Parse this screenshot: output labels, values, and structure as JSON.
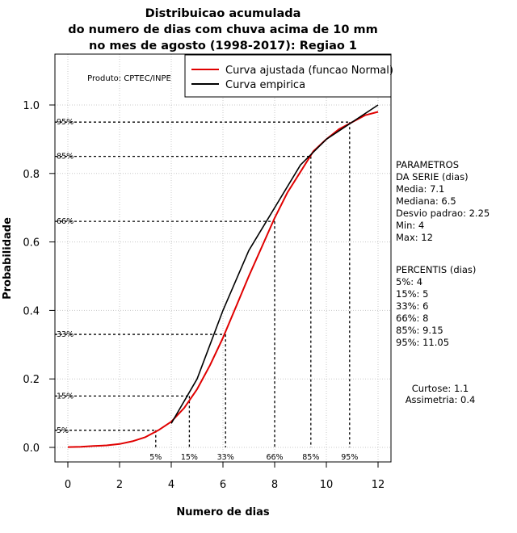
{
  "chart_data": {
    "type": "line",
    "title": [
      "Distribuicao acumulada",
      "do numero de dias com chuva acima de 10 mm",
      "no mes de agosto (1998-2017): Regiao 1"
    ],
    "xlabel": "Numero de dias",
    "ylabel": "Probabilidade",
    "xlim": [
      -0.5,
      12.5
    ],
    "ylim": [
      -0.05,
      1.15
    ],
    "xticks": [
      0,
      2,
      4,
      6,
      8,
      10,
      12
    ],
    "yticks": [
      0.0,
      0.2,
      0.4,
      0.6,
      0.8,
      1.0
    ],
    "xtick_labels": [
      "0",
      "2",
      "4",
      "6",
      "8",
      "10",
      "12"
    ],
    "ytick_labels": [
      "0.0",
      "0.2",
      "0.4",
      "0.6",
      "0.8",
      "1.0"
    ],
    "grid": true,
    "legend_position": "top-right",
    "series": [
      {
        "name": "Curva ajustada (funcao Normal)",
        "color": "#e00000",
        "x": [
          0,
          0.5,
          1,
          1.5,
          2,
          2.5,
          3,
          3.5,
          4,
          4.5,
          5,
          5.5,
          6,
          6.5,
          7,
          7.5,
          8,
          8.5,
          9,
          9.5,
          10,
          10.5,
          11,
          11.5,
          12
        ],
        "y": [
          0.001,
          0.002,
          0.004,
          0.006,
          0.01,
          0.018,
          0.03,
          0.05,
          0.075,
          0.115,
          0.17,
          0.24,
          0.32,
          0.41,
          0.5,
          0.585,
          0.67,
          0.745,
          0.805,
          0.865,
          0.9,
          0.93,
          0.95,
          0.97,
          0.98
        ]
      },
      {
        "name": "Curva empirica",
        "color": "#000000",
        "x": [
          4,
          5,
          6,
          7,
          8,
          9,
          10,
          11,
          12
        ],
        "y": [
          0.07,
          0.2,
          0.4,
          0.575,
          0.7,
          0.825,
          0.9,
          0.95,
          1.0
        ]
      }
    ],
    "percentile_guides": [
      {
        "label": "5%",
        "x": 3.4,
        "y": 0.05
      },
      {
        "label": "15%",
        "x": 4.7,
        "y": 0.15
      },
      {
        "label": "33%",
        "x": 6.1,
        "y": 0.33
      },
      {
        "label": "66%",
        "x": 8.0,
        "y": 0.66
      },
      {
        "label": "85%",
        "x": 9.4,
        "y": 0.85
      },
      {
        "label": "95%",
        "x": 10.9,
        "y": 0.95
      }
    ],
    "annotations": {
      "product": "Produto: CPTEC/INPE",
      "parametros": [
        "PARAMETROS",
        "DA SERIE (dias)",
        "  Media: 7.1",
        "  Mediana: 6.5",
        "  Desvio padrao: 2.25",
        "  Min: 4",
        "  Max: 12"
      ],
      "percentis": [
        "PERCENTIS (dias)",
        "  5%: 4",
        "  15%: 5",
        "  33%: 6",
        "  66%: 8",
        "  85%: 9.15",
        "  95%: 11.05"
      ],
      "moments": [
        "Curtose: 1.1",
        "Assimetria: 0.4"
      ]
    }
  }
}
